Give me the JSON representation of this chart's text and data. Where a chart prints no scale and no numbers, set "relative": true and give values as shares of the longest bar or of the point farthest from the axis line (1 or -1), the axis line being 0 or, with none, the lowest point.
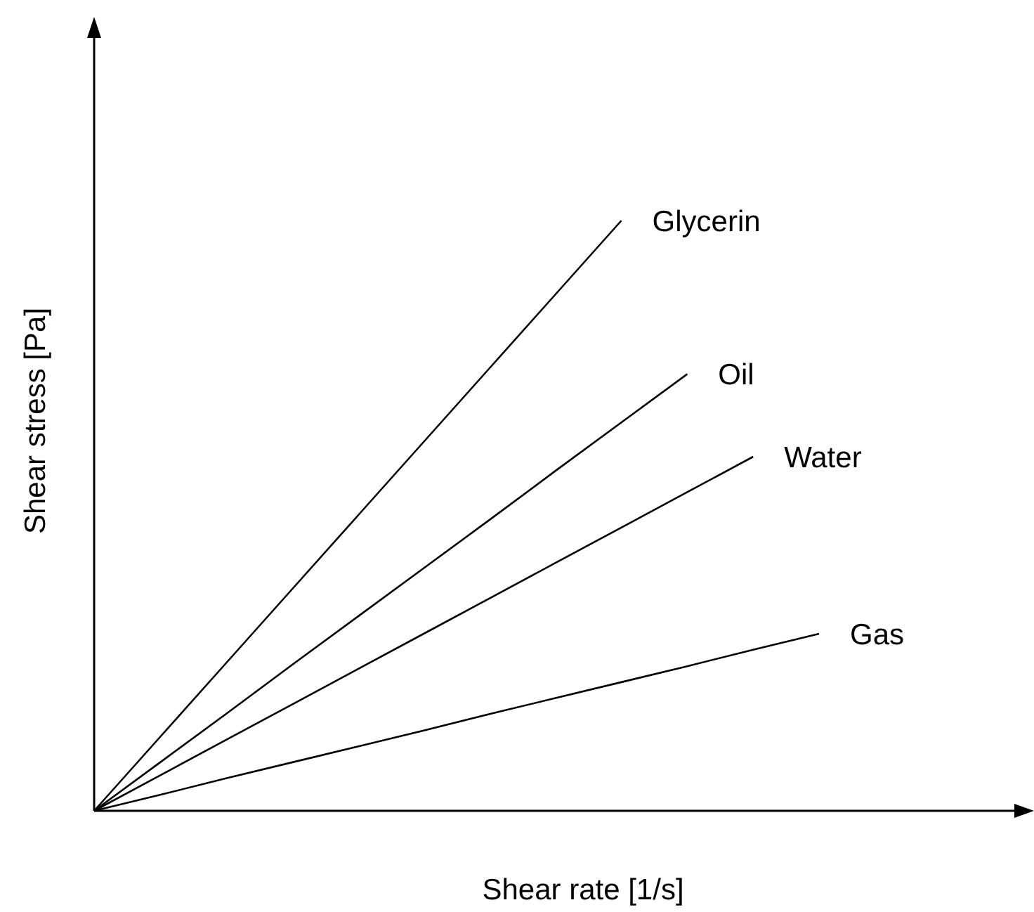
{
  "chart_data": {
    "type": "line",
    "relative": true,
    "xlabel": "Shear rate [1/s]",
    "ylabel": "Shear stress [Pa]",
    "marker": "none",
    "line_style": "solid",
    "categories": [
      null,
      null,
      null,
      null,
      null,
      null,
      null,
      null,
      null,
      null,
      null,
      null
    ],
    "series": [
      {
        "name": "Glycerin",
        "color": "#000000",
        "values": [
          0,
          0.125,
          0.25,
          0.375,
          0.5,
          0.625,
          0.75,
          0.875,
          1,
          null,
          null,
          null
        ]
      },
      {
        "name": "Oil",
        "color": "#000000",
        "values": [
          0,
          0.082,
          0.164,
          0.247,
          0.329,
          0.411,
          0.493,
          0.576,
          0.658,
          0.74,
          null,
          null
        ]
      },
      {
        "name": "Water",
        "color": "#000000",
        "values": [
          0,
          0.06,
          0.12,
          0.18,
          0.24,
          0.3,
          0.36,
          0.42,
          0.48,
          0.54,
          0.6,
          null
        ]
      },
      {
        "name": "Gas",
        "color": "#000000",
        "values": [
          0,
          0.027,
          0.055,
          0.082,
          0.109,
          0.136,
          0.164,
          0.191,
          0.218,
          0.245,
          0.273,
          0.3
        ]
      }
    ]
  }
}
